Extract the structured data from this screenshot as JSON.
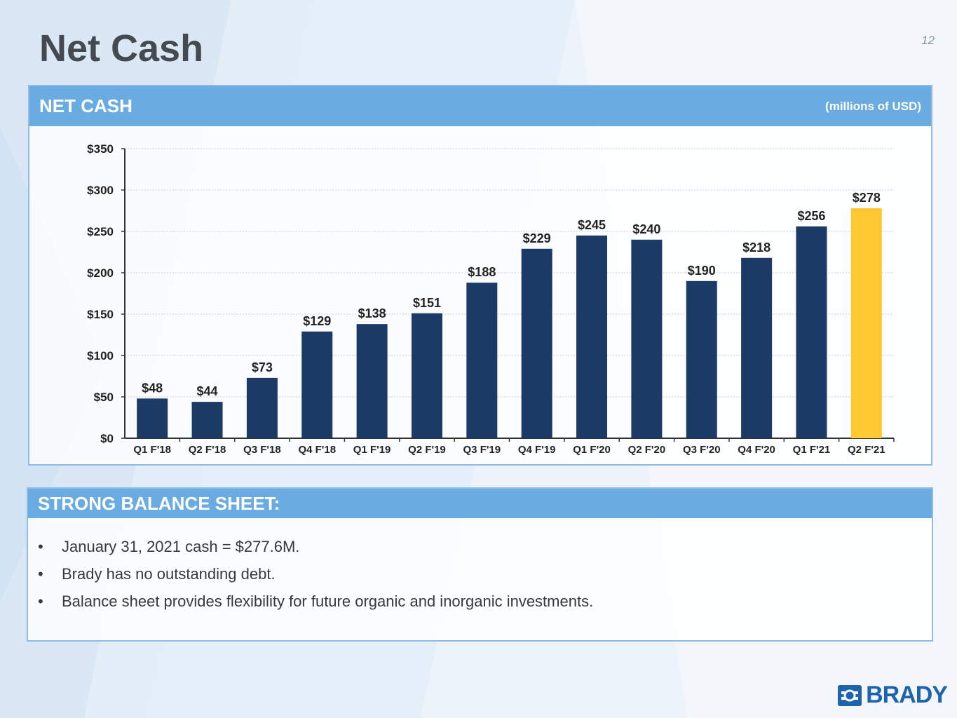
{
  "slide": {
    "title": "Net Cash",
    "page_number": "12"
  },
  "chart_panel": {
    "header": "NET CASH",
    "units": "(millions of USD)"
  },
  "chart_data": {
    "type": "bar",
    "categories": [
      "Q1 F'18",
      "Q2 F'18",
      "Q3 F'18",
      "Q4 F'18",
      "Q1 F'19",
      "Q2 F'19",
      "Q3 F'19",
      "Q4 F'19",
      "Q1 F'20",
      "Q2 F'20",
      "Q3 F'20",
      "Q4 F'20",
      "Q1 F'21",
      "Q2 F'21"
    ],
    "values": [
      48,
      44,
      73,
      129,
      138,
      151,
      188,
      229,
      245,
      240,
      190,
      218,
      256,
      278
    ],
    "data_labels": [
      "$48",
      "$44",
      "$73",
      "$129",
      "$138",
      "$151",
      "$188",
      "$229",
      "$245",
      "$240",
      "$190",
      "$218",
      "$256",
      "$278"
    ],
    "yticks": [
      0,
      50,
      100,
      150,
      200,
      250,
      300,
      350
    ],
    "ytick_labels": [
      "$0",
      "$50",
      "$100",
      "$150",
      "$200",
      "$250",
      "$300",
      "$350"
    ],
    "ylim": [
      0,
      350
    ],
    "grid": true,
    "bar_color": "#1c3a66",
    "highlight_color": "#fec832",
    "highlight_index": 13
  },
  "balance_sheet": {
    "header": "STRONG BALANCE SHEET:",
    "bullet_char": "•",
    "bullets": [
      "January 31, 2021 cash = $277.6M.",
      "Brady has no outstanding debt.",
      "Balance sheet provides flexibility for future organic and inorganic investments."
    ]
  },
  "logo": {
    "text": "BRADY",
    "color": "#1d63ae"
  }
}
